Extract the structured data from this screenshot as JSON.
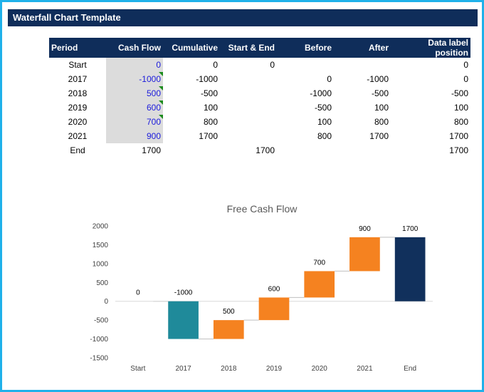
{
  "header": {
    "title": "Waterfall Chart Template"
  },
  "table": {
    "columns": [
      "Period",
      "Cash Flow",
      "Cumulative",
      "Start & End",
      "Before",
      "After",
      "Data label position"
    ],
    "rows": [
      {
        "period": "Start",
        "cash": "0",
        "cum": "0",
        "se": "0",
        "before": "",
        "after": "",
        "dlp": "0"
      },
      {
        "period": "2017",
        "cash": "-1000",
        "cum": "-1000",
        "se": "",
        "before": "0",
        "after": "-1000",
        "dlp": "0"
      },
      {
        "period": "2018",
        "cash": "500",
        "cum": "-500",
        "se": "",
        "before": "-1000",
        "after": "-500",
        "dlp": "-500"
      },
      {
        "period": "2019",
        "cash": "600",
        "cum": "100",
        "se": "",
        "before": "-500",
        "after": "100",
        "dlp": "100"
      },
      {
        "period": "2020",
        "cash": "700",
        "cum": "800",
        "se": "",
        "before": "100",
        "after": "800",
        "dlp": "800"
      },
      {
        "period": "2021",
        "cash": "900",
        "cum": "1700",
        "se": "",
        "before": "800",
        "after": "1700",
        "dlp": "1700"
      },
      {
        "period": "End",
        "cash": "1700",
        "cum": "",
        "se": "1700",
        "before": "",
        "after": "",
        "dlp": "1700"
      }
    ]
  },
  "chart_data": {
    "type": "bar",
    "title": "Free Cash Flow",
    "categories": [
      "Start",
      "2017",
      "2018",
      "2019",
      "2020",
      "2021",
      "End"
    ],
    "bars": [
      {
        "label": "0",
        "low": 0,
        "high": 0,
        "color": "#1f8a9a",
        "kind": "total"
      },
      {
        "label": "-1000",
        "low": -1000,
        "high": 0,
        "color": "#1f8a9a",
        "kind": "decrease"
      },
      {
        "label": "500",
        "low": -1000,
        "high": -500,
        "color": "#f58220",
        "kind": "increase"
      },
      {
        "label": "600",
        "low": -500,
        "high": 100,
        "color": "#f58220",
        "kind": "increase"
      },
      {
        "label": "700",
        "low": 100,
        "high": 800,
        "color": "#f58220",
        "kind": "increase"
      },
      {
        "label": "900",
        "low": 800,
        "high": 1700,
        "color": "#f58220",
        "kind": "increase"
      },
      {
        "label": "1700",
        "low": 0,
        "high": 1700,
        "color": "#11305c",
        "kind": "total"
      }
    ],
    "ylim": [
      -1500,
      2000
    ],
    "yticks": [
      -1500,
      -1000,
      -500,
      0,
      500,
      1000,
      1500,
      2000
    ],
    "connector_color": "#bfbfbf",
    "grid": false,
    "legend": "none"
  }
}
